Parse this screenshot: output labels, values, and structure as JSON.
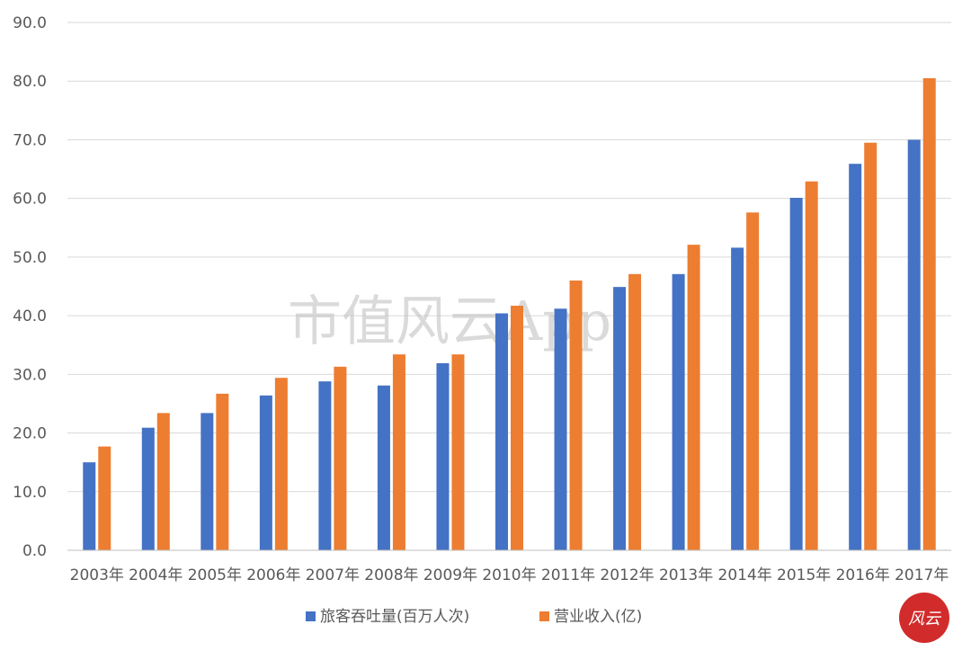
{
  "chart_data": {
    "type": "bar",
    "categories": [
      "2003年",
      "2004年",
      "2005年",
      "2006年",
      "2007年",
      "2008年",
      "2009年",
      "2010年",
      "2011年",
      "2012年",
      "2013年",
      "2014年",
      "2015年",
      "2016年",
      "2017年"
    ],
    "series": [
      {
        "name": "旅客吞吐量(百万人次)",
        "color": "#4472C4",
        "values": [
          15.0,
          20.9,
          23.4,
          26.4,
          28.8,
          28.1,
          31.9,
          40.4,
          41.2,
          44.9,
          47.1,
          51.6,
          60.1,
          65.9,
          70.0
        ]
      },
      {
        "name": "营业收入(亿)",
        "color": "#ED7D31",
        "values": [
          17.7,
          23.4,
          26.7,
          29.4,
          31.3,
          33.4,
          33.4,
          41.7,
          46.0,
          47.1,
          52.1,
          57.6,
          62.9,
          69.5,
          80.5
        ]
      }
    ],
    "ylim": [
      0,
      90
    ],
    "yticks": [
      "0.0",
      "10.0",
      "20.0",
      "30.0",
      "40.0",
      "50.0",
      "60.0",
      "70.0",
      "80.0",
      "90.0"
    ],
    "legend_position": "bottom",
    "grid": true,
    "title": "",
    "xlabel": "",
    "ylabel": ""
  },
  "watermark": {
    "text": "市值风云App"
  },
  "logo": {
    "text": "风云",
    "color": "#d22b2b"
  }
}
